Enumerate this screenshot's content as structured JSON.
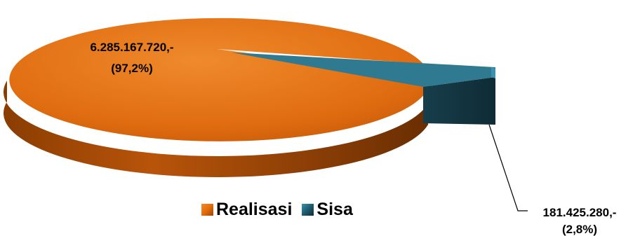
{
  "chart_data": {
    "type": "pie",
    "categories": [
      "Realisasi",
      "Sisa"
    ],
    "values": [
      6285167720,
      181425280
    ],
    "percentages": [
      97.2,
      2.8
    ],
    "data_labels": [
      {
        "value": "6.285.167.720,-",
        "percent": "(97,2%)"
      },
      {
        "value": "181.425.280,-",
        "percent": "(2,8%)"
      }
    ],
    "colors": {
      "Realisasi": "#E46C0A",
      "Sisa": "#1E5B6E"
    },
    "legend_position": "bottom",
    "legend": [
      "Realisasi",
      "Sisa"
    ],
    "style": "3d-exploded"
  }
}
